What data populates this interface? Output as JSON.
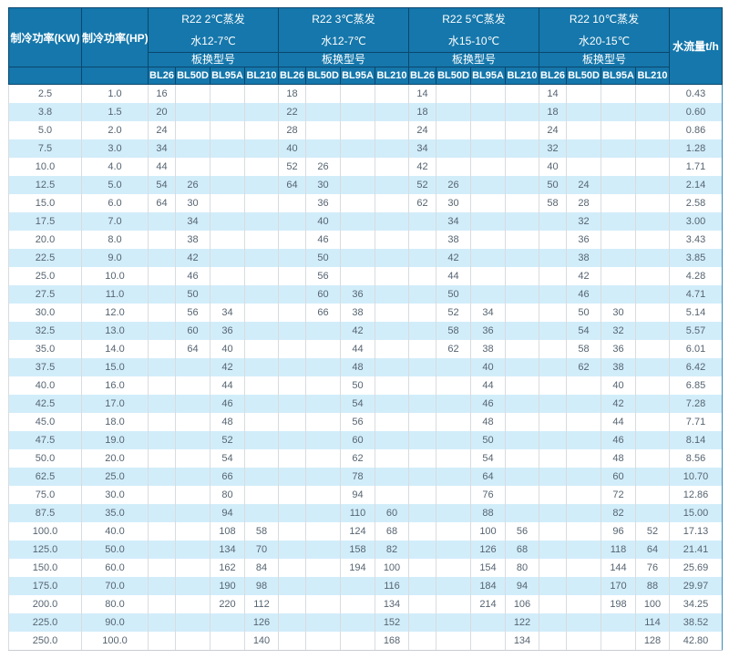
{
  "colors": {
    "header_bg": "#1577ab",
    "header_border": "#0b466d",
    "header_text": "#ffffff",
    "row_stripe_bg": "#d2edfa",
    "row_bg": "#ffffff",
    "body_text": "#566471",
    "body_border": "#d8dcdf",
    "right_edge_border": "#3d8ab8"
  },
  "header": {
    "power_kw": "制冷功率(KW)",
    "power_hp": "制冷功率(HP)",
    "flow": "水流量t/h",
    "groups": [
      {
        "line1": "R22 2℃蒸发",
        "line2": "水12-7℃",
        "sub": "板换型号",
        "models": [
          "BL26",
          "BL50D",
          "BL95A",
          "BL210"
        ]
      },
      {
        "line1": "R22 3℃蒸发",
        "line2": "水12-7℃",
        "sub": "板换型号",
        "models": [
          "BL26",
          "BL50D",
          "BL95A",
          "BL210"
        ]
      },
      {
        "line1": "R22 5℃蒸发",
        "line2": "水15-10℃",
        "sub": "板换型号",
        "models": [
          "BL26",
          "BL50D",
          "BL95A",
          "BL210"
        ]
      },
      {
        "line1": "R22 10℃蒸发",
        "line2": "水20-15℃",
        "sub": "板换型号",
        "models": [
          "BL26",
          "BL50D",
          "BL95A",
          "BL210"
        ]
      }
    ]
  },
  "table": {
    "columns": [
      "制冷功率(KW)",
      "制冷功率(HP)",
      "2℃ BL26",
      "2℃ BL50D",
      "2℃ BL95A",
      "2℃ BL210",
      "3℃ BL26",
      "3℃ BL50D",
      "3℃ BL95A",
      "3℃ BL210",
      "5℃ BL26",
      "5℃ BL50D",
      "5℃ BL95A",
      "5℃ BL210",
      "10℃ BL26",
      "10℃ BL50D",
      "10℃ BL95A",
      "10℃ BL210",
      "水流量t/h"
    ],
    "rows": [
      [
        "2.5",
        "1.0",
        "16",
        "",
        "",
        "",
        "18",
        "",
        "",
        "",
        "14",
        "",
        "",
        "",
        "14",
        "",
        "",
        "",
        "0.43"
      ],
      [
        "3.8",
        "1.5",
        "20",
        "",
        "",
        "",
        "22",
        "",
        "",
        "",
        "18",
        "",
        "",
        "",
        "18",
        "",
        "",
        "",
        "0.60"
      ],
      [
        "5.0",
        "2.0",
        "24",
        "",
        "",
        "",
        "28",
        "",
        "",
        "",
        "24",
        "",
        "",
        "",
        "24",
        "",
        "",
        "",
        "0.86"
      ],
      [
        "7.5",
        "3.0",
        "34",
        "",
        "",
        "",
        "40",
        "",
        "",
        "",
        "34",
        "",
        "",
        "",
        "32",
        "",
        "",
        "",
        "1.28"
      ],
      [
        "10.0",
        "4.0",
        "44",
        "",
        "",
        "",
        "52",
        "26",
        "",
        "",
        "42",
        "",
        "",
        "",
        "40",
        "",
        "",
        "",
        "1.71"
      ],
      [
        "12.5",
        "5.0",
        "54",
        "26",
        "",
        "",
        "64",
        "30",
        "",
        "",
        "52",
        "26",
        "",
        "",
        "50",
        "24",
        "",
        "",
        "2.14"
      ],
      [
        "15.0",
        "6.0",
        "64",
        "30",
        "",
        "",
        "",
        "36",
        "",
        "",
        "62",
        "30",
        "",
        "",
        "58",
        "28",
        "",
        "",
        "2.58"
      ],
      [
        "17.5",
        "7.0",
        "",
        "34",
        "",
        "",
        "",
        "40",
        "",
        "",
        "",
        "34",
        "",
        "",
        "",
        "32",
        "",
        "",
        "3.00"
      ],
      [
        "20.0",
        "8.0",
        "",
        "38",
        "",
        "",
        "",
        "46",
        "",
        "",
        "",
        "38",
        "",
        "",
        "",
        "36",
        "",
        "",
        "3.43"
      ],
      [
        "22.5",
        "9.0",
        "",
        "42",
        "",
        "",
        "",
        "50",
        "",
        "",
        "",
        "42",
        "",
        "",
        "",
        "38",
        "",
        "",
        "3.85"
      ],
      [
        "25.0",
        "10.0",
        "",
        "46",
        "",
        "",
        "",
        "56",
        "",
        "",
        "",
        "44",
        "",
        "",
        "",
        "42",
        "",
        "",
        "4.28"
      ],
      [
        "27.5",
        "11.0",
        "",
        "50",
        "",
        "",
        "",
        "60",
        "36",
        "",
        "",
        "50",
        "",
        "",
        "",
        "46",
        "",
        "",
        "4.71"
      ],
      [
        "30.0",
        "12.0",
        "",
        "56",
        "34",
        "",
        "",
        "66",
        "38",
        "",
        "",
        "52",
        "34",
        "",
        "",
        "50",
        "30",
        "",
        "5.14"
      ],
      [
        "32.5",
        "13.0",
        "",
        "60",
        "36",
        "",
        "",
        "",
        "42",
        "",
        "",
        "58",
        "36",
        "",
        "",
        "54",
        "32",
        "",
        "5.57"
      ],
      [
        "35.0",
        "14.0",
        "",
        "64",
        "40",
        "",
        "",
        "",
        "44",
        "",
        "",
        "62",
        "38",
        "",
        "",
        "58",
        "36",
        "",
        "6.01"
      ],
      [
        "37.5",
        "15.0",
        "",
        "",
        "42",
        "",
        "",
        "",
        "48",
        "",
        "",
        "",
        "40",
        "",
        "",
        "62",
        "38",
        "",
        "6.42"
      ],
      [
        "40.0",
        "16.0",
        "",
        "",
        "44",
        "",
        "",
        "",
        "50",
        "",
        "",
        "",
        "44",
        "",
        "",
        "",
        "40",
        "",
        "6.85"
      ],
      [
        "42.5",
        "17.0",
        "",
        "",
        "46",
        "",
        "",
        "",
        "54",
        "",
        "",
        "",
        "46",
        "",
        "",
        "",
        "42",
        "",
        "7.28"
      ],
      [
        "45.0",
        "18.0",
        "",
        "",
        "48",
        "",
        "",
        "",
        "56",
        "",
        "",
        "",
        "48",
        "",
        "",
        "",
        "44",
        "",
        "7.71"
      ],
      [
        "47.5",
        "19.0",
        "",
        "",
        "52",
        "",
        "",
        "",
        "60",
        "",
        "",
        "",
        "50",
        "",
        "",
        "",
        "46",
        "",
        "8.14"
      ],
      [
        "50.0",
        "20.0",
        "",
        "",
        "54",
        "",
        "",
        "",
        "62",
        "",
        "",
        "",
        "54",
        "",
        "",
        "",
        "48",
        "",
        "8.56"
      ],
      [
        "62.5",
        "25.0",
        "",
        "",
        "66",
        "",
        "",
        "",
        "78",
        "",
        "",
        "",
        "64",
        "",
        "",
        "",
        "60",
        "",
        "10.70"
      ],
      [
        "75.0",
        "30.0",
        "",
        "",
        "80",
        "",
        "",
        "",
        "94",
        "",
        "",
        "",
        "76",
        "",
        "",
        "",
        "72",
        "",
        "12.86"
      ],
      [
        "87.5",
        "35.0",
        "",
        "",
        "94",
        "",
        "",
        "",
        "110",
        "60",
        "",
        "",
        "88",
        "",
        "",
        "",
        "82",
        "",
        "15.00"
      ],
      [
        "100.0",
        "40.0",
        "",
        "",
        "108",
        "58",
        "",
        "",
        "124",
        "68",
        "",
        "",
        "100",
        "56",
        "",
        "",
        "96",
        "52",
        "17.13"
      ],
      [
        "125.0",
        "50.0",
        "",
        "",
        "134",
        "70",
        "",
        "",
        "158",
        "82",
        "",
        "",
        "126",
        "68",
        "",
        "",
        "118",
        "64",
        "21.41"
      ],
      [
        "150.0",
        "60.0",
        "",
        "",
        "162",
        "84",
        "",
        "",
        "194",
        "100",
        "",
        "",
        "154",
        "80",
        "",
        "",
        "144",
        "76",
        "25.69"
      ],
      [
        "175.0",
        "70.0",
        "",
        "",
        "190",
        "98",
        "",
        "",
        "",
        "116",
        "",
        "",
        "184",
        "94",
        "",
        "",
        "170",
        "88",
        "29.97"
      ],
      [
        "200.0",
        "80.0",
        "",
        "",
        "220",
        "112",
        "",
        "",
        "",
        "134",
        "",
        "",
        "214",
        "106",
        "",
        "",
        "198",
        "100",
        "34.25"
      ],
      [
        "225.0",
        "90.0",
        "",
        "",
        "",
        "126",
        "",
        "",
        "",
        "152",
        "",
        "",
        "",
        "122",
        "",
        "",
        "",
        "114",
        "38.52"
      ],
      [
        "250.0",
        "100.0",
        "",
        "",
        "",
        "140",
        "",
        "",
        "",
        "168",
        "",
        "",
        "",
        "134",
        "",
        "",
        "",
        "128",
        "42.80"
      ]
    ]
  }
}
